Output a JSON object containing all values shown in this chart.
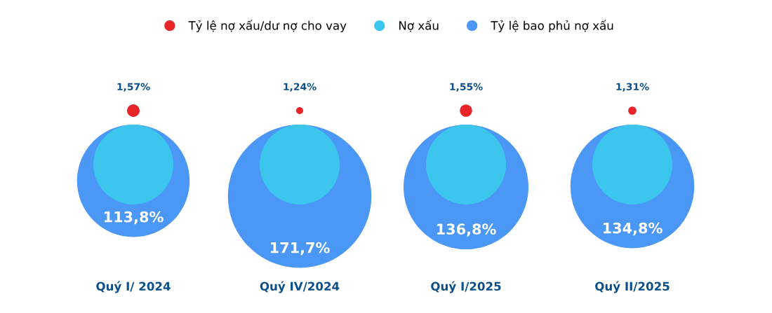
{
  "chart_data": {
    "type": "other",
    "categories": [
      "Quý I/ 2024",
      "Quý IV/2024",
      "Quý I/2025",
      "Quý II/2025"
    ],
    "series": [
      {
        "name": "Tỷ lệ nợ xấu/dư nợ cho vay",
        "color": "#e8262a",
        "values": [
          1.57,
          1.24,
          1.55,
          1.31
        ],
        "value_labels": [
          "1,57%",
          "1,24%",
          "1,55%",
          "1,31%"
        ]
      },
      {
        "name": "Nợ xấu",
        "color": "#3cc6ee",
        "values": [
          null,
          null,
          null,
          null
        ]
      },
      {
        "name": "Tỷ lệ bao phủ nợ xấu",
        "color": "#4a97f6",
        "values": [
          113.8,
          171.7,
          136.8,
          134.8
        ],
        "value_labels": [
          "113,8%",
          "171,7%",
          "136,8%",
          "134,8%"
        ]
      }
    ],
    "legend": "top"
  }
}
